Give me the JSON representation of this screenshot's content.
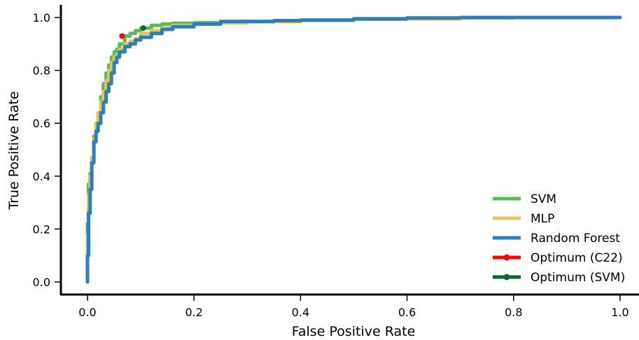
{
  "chart_data": {
    "type": "line",
    "title": "",
    "xlabel": "False Positive Rate",
    "ylabel": "True Positive Rate",
    "xlim": [
      -0.05,
      1.035
    ],
    "ylim": [
      -0.05,
      1.05
    ],
    "x_ticks": [
      0.0,
      0.2,
      0.4,
      0.6,
      0.8,
      1.0
    ],
    "x_tick_labels": [
      "0.0",
      "0.2",
      "0.4",
      "0.6",
      "0.8",
      "1.0"
    ],
    "y_ticks": [
      0.0,
      0.2,
      0.4,
      0.6,
      0.8,
      1.0
    ],
    "y_tick_labels": [
      "0.0",
      "0.2",
      "0.4",
      "0.6",
      "0.8",
      "1.0"
    ],
    "grid": false,
    "legend_position": "bottom-right",
    "series": [
      {
        "name": "SVM",
        "color": "#5cb85c",
        "x": [
          0.0,
          0.002,
          0.005,
          0.008,
          0.012,
          0.016,
          0.02,
          0.025,
          0.03,
          0.035,
          0.04,
          0.045,
          0.05,
          0.055,
          0.06,
          0.07,
          0.08,
          0.09,
          0.1,
          0.12,
          0.14,
          0.16,
          0.2,
          0.25,
          0.3,
          0.35,
          0.4,
          0.5,
          0.6,
          0.7,
          0.8,
          0.9,
          1.0
        ],
        "y": [
          0.0,
          0.22,
          0.37,
          0.41,
          0.47,
          0.55,
          0.6,
          0.64,
          0.7,
          0.75,
          0.79,
          0.82,
          0.85,
          0.87,
          0.88,
          0.9,
          0.93,
          0.94,
          0.95,
          0.96,
          0.97,
          0.975,
          0.978,
          0.98,
          0.985,
          0.985,
          0.985,
          0.99,
          0.995,
          0.998,
          1.0,
          1.0,
          1.0
        ]
      },
      {
        "name": "MLP",
        "color": "#e3c45f",
        "x": [
          0.0,
          0.002,
          0.005,
          0.008,
          0.012,
          0.016,
          0.02,
          0.025,
          0.03,
          0.035,
          0.04,
          0.045,
          0.05,
          0.055,
          0.06,
          0.07,
          0.08,
          0.09,
          0.1,
          0.12,
          0.14,
          0.16,
          0.2,
          0.25,
          0.3,
          0.35,
          0.4,
          0.5,
          0.6,
          0.7,
          0.8,
          0.9,
          1.0
        ],
        "y": [
          0.0,
          0.18,
          0.33,
          0.4,
          0.47,
          0.54,
          0.6,
          0.64,
          0.68,
          0.72,
          0.76,
          0.8,
          0.83,
          0.85,
          0.86,
          0.88,
          0.9,
          0.91,
          0.92,
          0.94,
          0.95,
          0.96,
          0.97,
          0.975,
          0.98,
          0.985,
          0.985,
          0.99,
          0.993,
          0.995,
          0.998,
          1.0,
          1.0
        ]
      },
      {
        "name": "Random Forest",
        "color": "#2f7ebc",
        "x": [
          0.0,
          0.002,
          0.005,
          0.008,
          0.012,
          0.016,
          0.02,
          0.025,
          0.03,
          0.035,
          0.04,
          0.045,
          0.05,
          0.055,
          0.06,
          0.07,
          0.08,
          0.09,
          0.1,
          0.12,
          0.14,
          0.16,
          0.2,
          0.25,
          0.3,
          0.35,
          0.4,
          0.5,
          0.6,
          0.7,
          0.8,
          0.9,
          1.0
        ],
        "y": [
          0.0,
          0.1,
          0.26,
          0.35,
          0.45,
          0.53,
          0.57,
          0.6,
          0.64,
          0.68,
          0.72,
          0.75,
          0.79,
          0.83,
          0.85,
          0.87,
          0.89,
          0.9,
          0.915,
          0.925,
          0.94,
          0.955,
          0.965,
          0.975,
          0.985,
          0.985,
          0.988,
          0.99,
          0.995,
          0.998,
          1.0,
          1.0,
          1.0
        ]
      }
    ],
    "points": [
      {
        "name": "Optimum (C22)",
        "color": "#ff0000",
        "x": 0.065,
        "y": 0.93
      },
      {
        "name": "Optimum (SVM)",
        "color": "#006b2d",
        "x": 0.105,
        "y": 0.96
      }
    ]
  }
}
